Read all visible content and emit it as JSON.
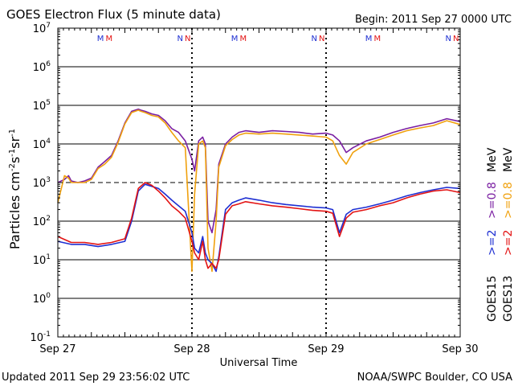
{
  "title": "GOES Electron Flux (5 minute data)",
  "begin": "Begin: 2011 Sep 27 0000 UTC",
  "updated": "Updated 2011 Sep 29 23:56:02 UTC",
  "credit": "NOAA/SWPC Boulder, CO USA",
  "legend": {
    "g15_label": "GOES15",
    "g13_label": "GOES13",
    "g15_low": ">=2",
    "g15_high": ">=0.8",
    "g13_low": ">=2",
    "g13_high": ">=0.8",
    "unit": "MeV"
  },
  "colors": {
    "g15_high": "#7a1fa2",
    "g13_high": "#f0a10e",
    "g15_low": "#1e2fd2",
    "g13_low": "#e31313"
  },
  "markers": [
    {
      "label": "MM",
      "day": 0.35
    },
    {
      "label": "NN",
      "day": 0.94
    },
    {
      "label": "MM",
      "day": 1.35
    },
    {
      "label": "NN",
      "day": 1.94
    },
    {
      "label": "MM",
      "day": 2.35
    },
    {
      "label": "NN",
      "day": 2.94
    }
  ],
  "chart_data": {
    "type": "line",
    "title": "GOES Electron Flux (5 minute data)",
    "xlabel": "Universal Time",
    "ylabel": "Particles cm^-2 s^-1 sr^-1",
    "x_unit": "days since 2011 Sep 27 0000 UTC",
    "xlim": [
      0,
      3
    ],
    "x_ticks": [
      0,
      1,
      2,
      3
    ],
    "x_tick_labels": [
      "Sep 27",
      "Sep 28",
      "Sep 29",
      "Sep 30"
    ],
    "y_scale": "log",
    "ylim": [
      0.1,
      10000000
    ],
    "y_ticks": [
      0.1,
      1,
      10,
      100,
      1000,
      10000,
      100000,
      1000000,
      10000000
    ],
    "y_tick_labels": [
      {
        "base": "10",
        "exp": "-1"
      },
      {
        "base": "10",
        "exp": "0"
      },
      {
        "base": "10",
        "exp": "1"
      },
      {
        "base": "10",
        "exp": "2"
      },
      {
        "base": "10",
        "exp": "3"
      },
      {
        "base": "10",
        "exp": "4"
      },
      {
        "base": "10",
        "exp": "5"
      },
      {
        "base": "10",
        "exp": "6"
      },
      {
        "base": "10",
        "exp": "7"
      }
    ],
    "threshold": 1000,
    "series": [
      {
        "name": "GOES15 >=0.8 MeV",
        "x": [
          0,
          0.05,
          0.08,
          0.1,
          0.15,
          0.2,
          0.25,
          0.3,
          0.35,
          0.4,
          0.45,
          0.5,
          0.55,
          0.6,
          0.62,
          0.65,
          0.7,
          0.75,
          0.8,
          0.85,
          0.9,
          0.95,
          1.0,
          1.02,
          1.05,
          1.08,
          1.1,
          1.12,
          1.15,
          1.18,
          1.2,
          1.25,
          1.3,
          1.35,
          1.4,
          1.5,
          1.6,
          1.7,
          1.8,
          1.9,
          2.0,
          2.05,
          2.1,
          2.15,
          2.2,
          2.3,
          2.4,
          2.5,
          2.6,
          2.7,
          2.8,
          2.9,
          3.0
        ],
        "values": [
          1000,
          1200,
          1500,
          1100,
          1000,
          1100,
          1300,
          2500,
          3500,
          5000,
          12000,
          35000,
          70000,
          80000,
          75000,
          70000,
          60000,
          55000,
          40000,
          25000,
          20000,
          12000,
          4000,
          2000,
          12000,
          15000,
          10000,
          100,
          50,
          200,
          3000,
          10000,
          15000,
          20000,
          22000,
          20000,
          22000,
          21000,
          20000,
          18000,
          19000,
          17000,
          12000,
          6000,
          8000,
          12000,
          15000,
          20000,
          25000,
          30000,
          35000,
          45000,
          38000
        ]
      },
      {
        "name": "GOES13 >=0.8 MeV",
        "x": [
          0,
          0.05,
          0.08,
          0.1,
          0.15,
          0.2,
          0.25,
          0.3,
          0.35,
          0.4,
          0.45,
          0.5,
          0.55,
          0.6,
          0.62,
          0.65,
          0.7,
          0.75,
          0.8,
          0.85,
          0.9,
          0.95,
          1.0,
          1.02,
          1.05,
          1.08,
          1.1,
          1.12,
          1.15,
          1.18,
          1.2,
          1.25,
          1.3,
          1.35,
          1.4,
          1.5,
          1.6,
          1.7,
          1.8,
          1.9,
          2.0,
          2.05,
          2.1,
          2.15,
          2.2,
          2.3,
          2.4,
          2.5,
          2.6,
          2.7,
          2.8,
          2.9,
          3.0
        ],
        "values": [
          300,
          1500,
          1300,
          1000,
          1000,
          1000,
          1200,
          2300,
          3000,
          4500,
          11000,
          33000,
          65000,
          75000,
          70000,
          65000,
          55000,
          50000,
          35000,
          20000,
          12000,
          8000,
          5,
          500,
          10000,
          12000,
          8000,
          20,
          5,
          100,
          2500,
          9000,
          13000,
          17000,
          19000,
          18000,
          19000,
          18000,
          17000,
          16000,
          15000,
          12000,
          5000,
          3000,
          6000,
          10000,
          13000,
          17000,
          22000,
          26000,
          30000,
          40000,
          32000
        ]
      },
      {
        "name": "GOES15 >=2 MeV",
        "x": [
          0,
          0.1,
          0.2,
          0.3,
          0.4,
          0.5,
          0.55,
          0.6,
          0.65,
          0.7,
          0.75,
          0.8,
          0.85,
          0.9,
          0.95,
          1.0,
          1.02,
          1.05,
          1.08,
          1.1,
          1.12,
          1.15,
          1.18,
          1.2,
          1.25,
          1.3,
          1.35,
          1.4,
          1.5,
          1.6,
          1.7,
          1.8,
          1.9,
          2.0,
          2.05,
          2.1,
          2.15,
          2.2,
          2.3,
          2.4,
          2.5,
          2.6,
          2.7,
          2.8,
          2.9,
          3.0
        ],
        "values": [
          30,
          25,
          25,
          22,
          25,
          30,
          100,
          600,
          900,
          800,
          700,
          500,
          350,
          250,
          180,
          50,
          20,
          15,
          40,
          15,
          10,
          8,
          5,
          12,
          200,
          300,
          350,
          400,
          350,
          300,
          270,
          250,
          230,
          220,
          200,
          50,
          150,
          200,
          230,
          280,
          350,
          450,
          550,
          650,
          750,
          700
        ]
      },
      {
        "name": "GOES13 >=2 MeV",
        "x": [
          0,
          0.1,
          0.2,
          0.3,
          0.4,
          0.5,
          0.55,
          0.6,
          0.65,
          0.7,
          0.75,
          0.8,
          0.85,
          0.9,
          0.95,
          1.0,
          1.02,
          1.05,
          1.08,
          1.1,
          1.12,
          1.15,
          1.18,
          1.2,
          1.25,
          1.3,
          1.35,
          1.4,
          1.5,
          1.6,
          1.7,
          1.8,
          1.9,
          2.0,
          2.05,
          2.1,
          2.15,
          2.2,
          2.3,
          2.4,
          2.5,
          2.6,
          2.7,
          2.8,
          2.9,
          3.0
        ],
        "values": [
          40,
          28,
          28,
          25,
          28,
          35,
          120,
          700,
          1000,
          850,
          600,
          400,
          250,
          180,
          120,
          30,
          15,
          10,
          30,
          10,
          6,
          8,
          6,
          10,
          150,
          250,
          280,
          320,
          280,
          250,
          230,
          210,
          190,
          180,
          160,
          40,
          120,
          170,
          200,
          250,
          300,
          400,
          500,
          600,
          650,
          550
        ]
      }
    ]
  }
}
